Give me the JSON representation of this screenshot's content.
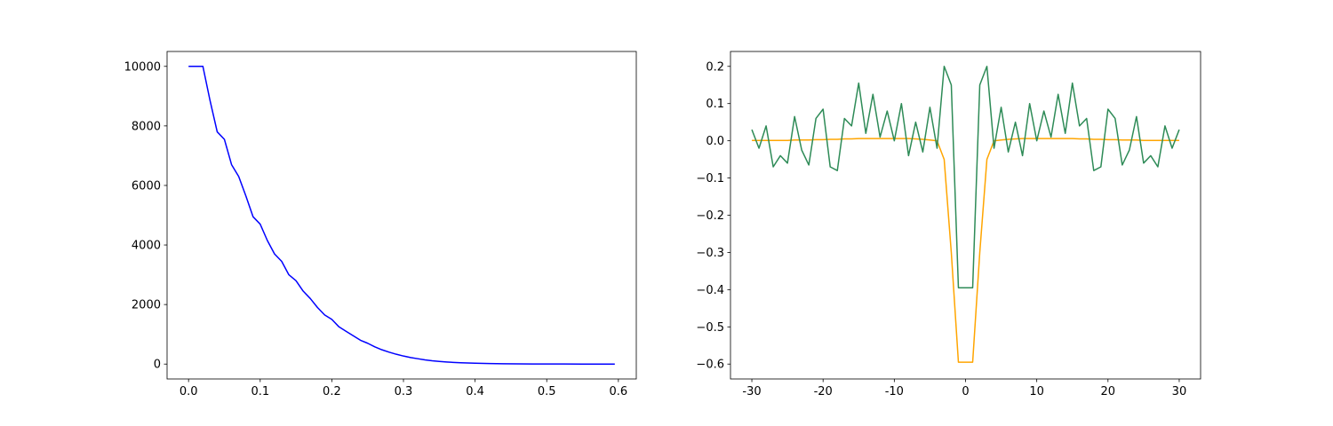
{
  "chart_data": [
    {
      "type": "line",
      "x": [
        0,
        0.01,
        0.02,
        0.03,
        0.04,
        0.05,
        0.06,
        0.07,
        0.08,
        0.09,
        0.1,
        0.11,
        0.12,
        0.13,
        0.14,
        0.15,
        0.16,
        0.17,
        0.18,
        0.19,
        0.2,
        0.21,
        0.22,
        0.23,
        0.24,
        0.25,
        0.26,
        0.27,
        0.28,
        0.29,
        0.3,
        0.31,
        0.32,
        0.33,
        0.34,
        0.35,
        0.36,
        0.37,
        0.38,
        0.39,
        0.4,
        0.42,
        0.44,
        0.46,
        0.48,
        0.5,
        0.55,
        0.595
      ],
      "series": [
        {
          "color": "#0000ff",
          "values": [
            10000,
            10000,
            10000,
            8850,
            7800,
            7550,
            6700,
            6300,
            5650,
            4950,
            4700,
            4150,
            3700,
            3450,
            3000,
            2800,
            2450,
            2200,
            1900,
            1650,
            1500,
            1250,
            1100,
            950,
            800,
            700,
            580,
            480,
            400,
            330,
            270,
            220,
            180,
            140,
            110,
            90,
            70,
            55,
            45,
            35,
            28,
            18,
            11,
            7,
            4,
            3,
            1,
            0
          ]
        }
      ],
      "xlim": [
        -0.03,
        0.625
      ],
      "xticks": [
        {
          "value": 0,
          "label": "0.0"
        },
        {
          "value": 0.1,
          "label": "0.1"
        },
        {
          "value": 0.2,
          "label": "0.2"
        },
        {
          "value": 0.3,
          "label": "0.3"
        },
        {
          "value": 0.4,
          "label": "0.4"
        },
        {
          "value": 0.5,
          "label": "0.5"
        },
        {
          "value": 0.6,
          "label": "0.6"
        }
      ],
      "ylim": [
        -500,
        10500
      ],
      "yticks": [
        0,
        2000,
        4000,
        6000,
        8000,
        10000
      ],
      "grid": false
    },
    {
      "type": "line",
      "x": [
        -30,
        -29,
        -28,
        -27,
        -26,
        -25,
        -24,
        -23,
        -22,
        -21,
        -20,
        -19,
        -18,
        -17,
        -16,
        -15,
        -14,
        -13,
        -12,
        -11,
        -10,
        -9,
        -8,
        -7,
        -6,
        -5,
        -4,
        -3,
        -2,
        -1,
        0,
        1,
        2,
        3,
        4,
        5,
        6,
        7,
        8,
        9,
        10,
        11,
        12,
        13,
        14,
        15,
        16,
        17,
        18,
        19,
        20,
        21,
        22,
        23,
        24,
        25,
        26,
        27,
        28,
        29,
        30
      ],
      "series": [
        {
          "color": "#ffa500",
          "values": [
            0.001,
            0.001,
            0.001,
            0.001,
            0.001,
            0.001,
            0.002,
            0.002,
            0.002,
            0.003,
            0.003,
            0.004,
            0.004,
            0.005,
            0.005,
            0.006,
            0.006,
            0.006,
            0.006,
            0.006,
            0.006,
            0.006,
            0.006,
            0.005,
            0.004,
            0.002,
            0,
            -0.05,
            -0.3,
            -0.595,
            -0.595,
            -0.595,
            -0.3,
            -0.05,
            0,
            0.002,
            0.004,
            0.005,
            0.006,
            0.006,
            0.006,
            0.006,
            0.006,
            0.006,
            0.006,
            0.006,
            0.005,
            0.005,
            0.004,
            0.004,
            0.003,
            0.003,
            0.002,
            0.002,
            0.002,
            0.001,
            0.001,
            0.001,
            0.001,
            0.001,
            0.001
          ]
        },
        {
          "color": "#2e8b57",
          "values": [
            0.03,
            -0.02,
            0.04,
            -0.07,
            -0.04,
            -0.06,
            0.065,
            -0.025,
            -0.065,
            0.06,
            0.085,
            -0.07,
            -0.08,
            0.06,
            0.04,
            0.155,
            0.02,
            0.125,
            0.01,
            0.08,
            0,
            0.1,
            -0.04,
            0.05,
            -0.03,
            0.09,
            -0.02,
            0.2,
            0.15,
            -0.395,
            -0.395,
            -0.395,
            0.15,
            0.2,
            -0.02,
            0.09,
            -0.03,
            0.05,
            -0.04,
            0.1,
            0,
            0.08,
            0.01,
            0.125,
            0.02,
            0.155,
            0.04,
            0.06,
            -0.08,
            -0.07,
            0.085,
            0.06,
            -0.065,
            -0.025,
            0.065,
            -0.06,
            -0.04,
            -0.07,
            0.04,
            -0.02,
            0.03
          ]
        }
      ],
      "xlim": [
        -33,
        33
      ],
      "xticks": [
        -30,
        -20,
        -10,
        0,
        10,
        20,
        30
      ],
      "ylim": [
        -0.64,
        0.24
      ],
      "yticks": [
        {
          "value": -0.6,
          "label": "−0.6"
        },
        {
          "value": -0.5,
          "label": "−0.5"
        },
        {
          "value": -0.4,
          "label": "−0.4"
        },
        {
          "value": -0.3,
          "label": "−0.3"
        },
        {
          "value": -0.2,
          "label": "−0.2"
        },
        {
          "value": -0.1,
          "label": "−0.1"
        },
        {
          "value": 0,
          "label": "0.0"
        },
        {
          "value": 0.1,
          "label": "0.1"
        },
        {
          "value": 0.2,
          "label": "0.2"
        }
      ],
      "grid": false
    }
  ]
}
